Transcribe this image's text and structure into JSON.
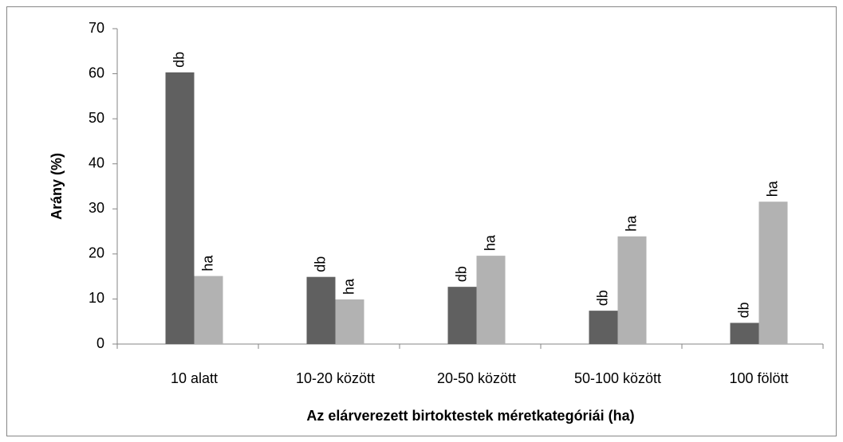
{
  "chart_data": {
    "type": "bar",
    "x_label": "Az elárverezett birtoktestek méretkategóriái (ha)",
    "y_label": "Arány (%)",
    "categories": [
      "10 alatt",
      "10-20 között",
      "20-50 között",
      "50-100 között",
      "100 fölött"
    ],
    "series": [
      {
        "name": "db",
        "color": "#606060",
        "values": [
          60.3,
          14.9,
          12.7,
          7.4,
          4.7
        ]
      },
      {
        "name": "ha",
        "color": "#b2b2b2",
        "values": [
          15.1,
          9.9,
          19.6,
          23.9,
          31.6
        ]
      }
    ],
    "ylim": [
      0,
      70
    ],
    "yticks": [
      0,
      10,
      20,
      30,
      40,
      50,
      60,
      70
    ],
    "grid": false
  }
}
